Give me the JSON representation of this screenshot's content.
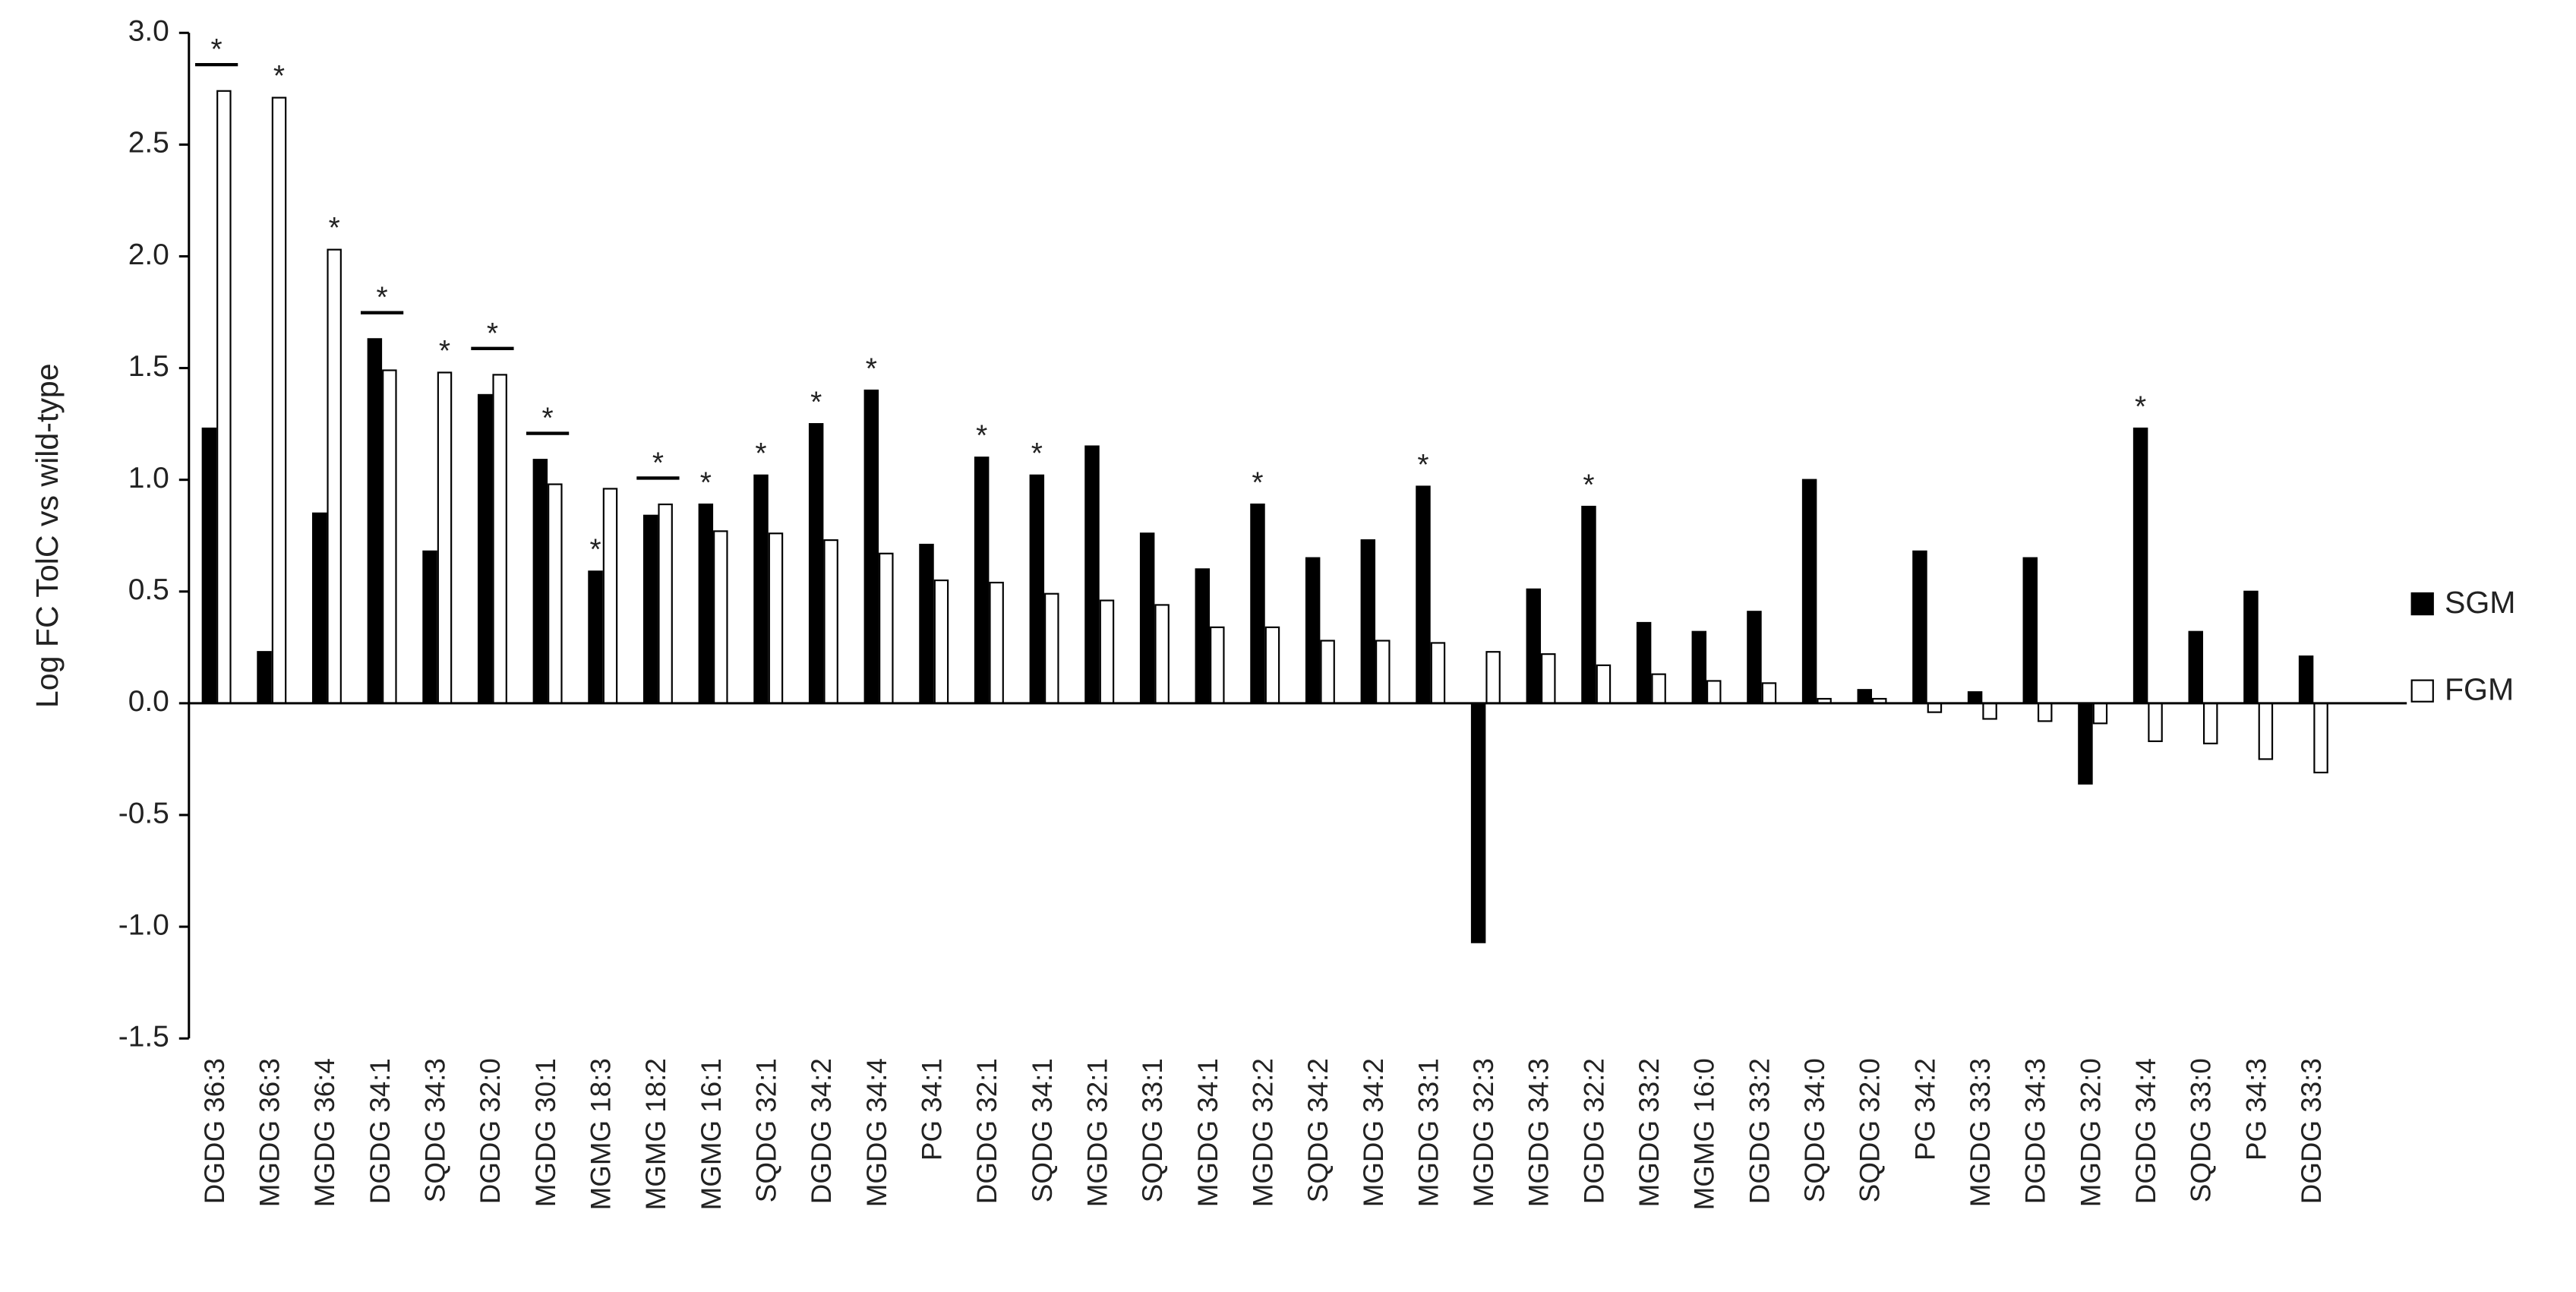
{
  "chart_data": {
    "type": "bar",
    "y_label": "Log FC TolC vs wild-type",
    "categories": [
      "DGDG 36:3",
      "MGDG 36:3",
      "MGDG 36:4",
      "DGDG 34:1",
      "SQDG 34:3",
      "DGDG 32:0",
      "MGDG 30:1",
      "MGMG 18:3",
      "MGMG 18:2",
      "MGMG 16:1",
      "SQDG 32:1",
      "DGDG 34:2",
      "MGDG 34:4",
      "PG 34:1",
      "DGDG 32:1",
      "SQDG 34:1",
      "MGDG 32:1",
      "SQDG 33:1",
      "MGDG 34:1",
      "MGDG 32:2",
      "SQDG 34:2",
      "MGDG 34:2",
      "MGDG 33:1",
      "MGDG 32:3",
      "MGDG 34:3",
      "DGDG 32:2",
      "MGDG 33:2",
      "MGMG 16:0",
      "DGDG 33:2",
      "SQDG 34:0",
      "SQDG 32:0",
      "PG 34:2",
      "MGDG 33:3",
      "DGDG 34:3",
      "MGDG 32:0",
      "DGDG 34:4",
      "SQDG 33:0",
      "PG 34:3",
      "DGDG 33:3"
    ],
    "series": [
      {
        "name": "SGM",
        "color": "#000000",
        "values": [
          1.23,
          0.23,
          0.85,
          1.63,
          0.68,
          1.38,
          1.09,
          0.59,
          0.84,
          0.89,
          1.02,
          1.25,
          1.4,
          0.71,
          1.1,
          1.02,
          1.15,
          0.76,
          0.6,
          0.89,
          0.65,
          0.73,
          0.97,
          -1.07,
          0.51,
          0.88,
          0.36,
          0.32,
          0.41,
          1.0,
          0.06,
          0.68,
          0.05,
          0.65,
          -0.36,
          1.23,
          0.32,
          0.5,
          0.21
        ]
      },
      {
        "name": "FGM",
        "color": "#ffffff",
        "values": [
          2.74,
          2.71,
          2.03,
          1.49,
          1.48,
          1.47,
          0.98,
          0.96,
          0.89,
          0.77,
          0.76,
          0.73,
          0.67,
          0.55,
          0.54,
          0.49,
          0.46,
          0.44,
          0.34,
          0.34,
          0.28,
          0.28,
          0.27,
          0.23,
          0.22,
          0.17,
          0.13,
          0.1,
          0.09,
          0.02,
          0.02,
          -0.04,
          -0.07,
          -0.08,
          -0.09,
          -0.17,
          -0.18,
          -0.25,
          -0.31
        ]
      }
    ],
    "ylim": [
      -1.5,
      3.0
    ],
    "yticks": [
      {
        "value": -1.5,
        "label": "-1.5"
      },
      {
        "value": -1.0,
        "label": "-1.0"
      },
      {
        "value": -0.5,
        "label": "-0.5"
      },
      {
        "value": 0,
        "label": "0.0"
      },
      {
        "value": 0.5,
        "label": "0.5"
      },
      {
        "value": 1.0,
        "label": "1.0"
      },
      {
        "value": 1.5,
        "label": "1.5"
      },
      {
        "value": 2.0,
        "label": "2.0"
      },
      {
        "value": 2.5,
        "label": "2.5"
      },
      {
        "value": 3.0,
        "label": "3.0"
      }
    ],
    "grid": false,
    "legend": "right",
    "annotations": [
      {
        "text": "*",
        "category": "DGDG 36:3",
        "over": "both"
      },
      {
        "text": "*",
        "category": "MGDG 36:3",
        "over": "FGM"
      },
      {
        "text": "*",
        "category": "MGDG 36:4",
        "over": "FGM"
      },
      {
        "text": "*",
        "category": "DGDG 34:1",
        "over": "both"
      },
      {
        "text": "*",
        "category": "SQDG 34:3",
        "over": "FGM"
      },
      {
        "text": "*",
        "category": "DGDG 32:0",
        "over": "both"
      },
      {
        "text": "*",
        "category": "MGDG 30:1",
        "over": "both"
      },
      {
        "text": "*",
        "category": "MGMG 18:3",
        "over": "SGM"
      },
      {
        "text": "*",
        "category": "MGMG 18:2",
        "over": "both"
      },
      {
        "text": "*",
        "category": "MGMG 16:1",
        "over": "SGM"
      },
      {
        "text": "*",
        "category": "SQDG 32:1",
        "over": "SGM"
      },
      {
        "text": "*",
        "category": "DGDG 34:2",
        "over": "SGM"
      },
      {
        "text": "*",
        "category": "MGDG 34:4",
        "over": "SGM"
      },
      {
        "text": "*",
        "category": "DGDG 32:1",
        "over": "SGM"
      },
      {
        "text": "*",
        "category": "SQDG 34:1",
        "over": "SGM"
      },
      {
        "text": "*",
        "category": "MGDG 32:2",
        "over": "SGM"
      },
      {
        "text": "*",
        "category": "MGDG 33:1",
        "over": "SGM"
      },
      {
        "text": "*",
        "category": "DGDG 32:2",
        "over": "SGM"
      },
      {
        "text": "*",
        "category": "DGDG 34:4",
        "over": "SGM"
      }
    ]
  }
}
